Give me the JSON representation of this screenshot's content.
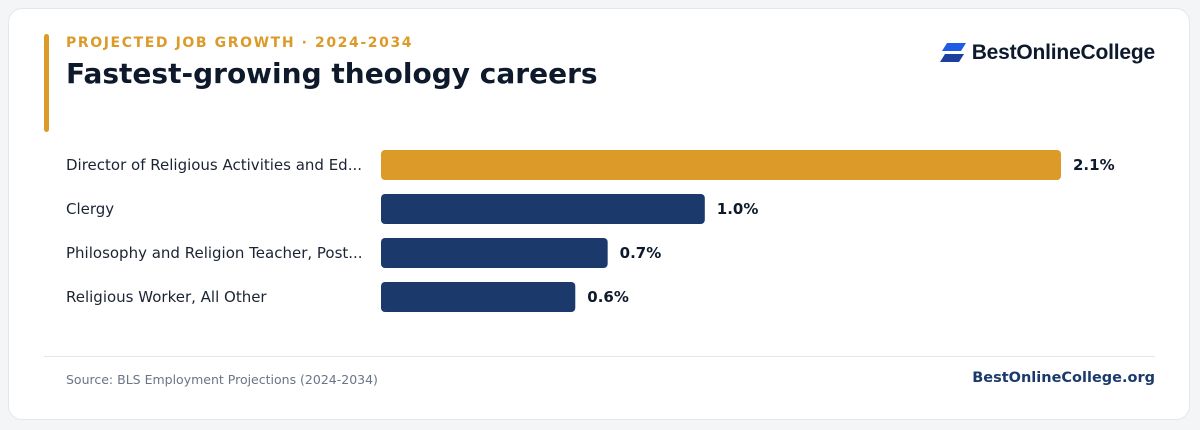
{
  "header": {
    "eyebrow": "PROJECTED JOB GROWTH · 2024-2034",
    "title": "Fastest-growing theology careers"
  },
  "brand": {
    "name": "BestOnlineCollege",
    "logo_icon": "stacked-parallelogram-logo-icon"
  },
  "colors": {
    "accent": "#dc9a28",
    "bar_primary": "#1b3a6b",
    "title": "#0e1a2c"
  },
  "chart_data": {
    "type": "bar",
    "orientation": "horizontal",
    "categories": [
      "Director of Religious Activities and Ed...",
      "Clergy",
      "Philosophy and Religion Teacher, Post...",
      "Religious Worker, All Other"
    ],
    "values": [
      2.1,
      1.0,
      0.7,
      0.6
    ],
    "value_labels": [
      "2.1%",
      "1.0%",
      "0.7%",
      "0.6%"
    ],
    "unit": "%",
    "highlight_index": 0,
    "xlim": [
      0,
      2.1
    ],
    "grid": false,
    "legend": "none"
  },
  "footer": {
    "source": "Source: BLS Employment Projections (2024-2034)",
    "site": "BestOnlineCollege.org"
  }
}
